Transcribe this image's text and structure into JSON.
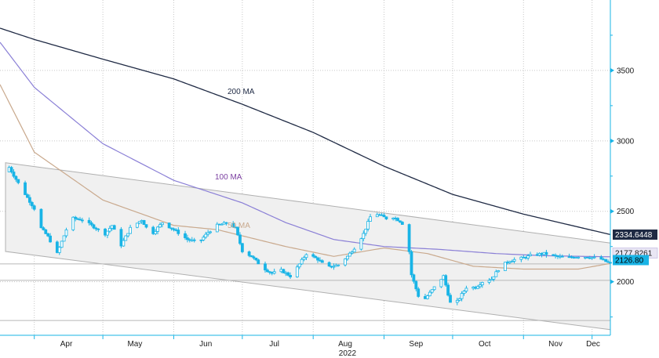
{
  "chart_data": {
    "type": "candlestick",
    "x_type": "date",
    "xlim": [
      "2022-03-17",
      "2022-12-09"
    ],
    "ylim": [
      1620,
      4000
    ],
    "year_label": "2022",
    "x_ticks": [
      {
        "date": "2022-04-01",
        "label": "Apr"
      },
      {
        "date": "2022-05-01",
        "label": "May"
      },
      {
        "date": "2022-06-01",
        "label": "Jun"
      },
      {
        "date": "2022-07-01",
        "label": "Jul"
      },
      {
        "date": "2022-08-01",
        "label": "Aug"
      },
      {
        "date": "2022-09-01",
        "label": "Sep"
      },
      {
        "date": "2022-10-01",
        "label": "Oct"
      },
      {
        "date": "2022-11-01",
        "label": "Nov"
      },
      {
        "date": "2022-12-01",
        "label": "Dec"
      }
    ],
    "y_ticks": [
      {
        "value": 2000,
        "label": "2000"
      },
      {
        "value": 2500,
        "label": "2500"
      },
      {
        "value": 3000,
        "label": "3000"
      },
      {
        "value": 3500,
        "label": "3500"
      }
    ],
    "horizontal_lines": [
      2126.8,
      2010,
      1725
    ],
    "channel": {
      "upper": [
        [
          "2022-03-17",
          2845
        ],
        [
          "2022-12-09",
          2275
        ]
      ],
      "lower": [
        [
          "2022-03-17",
          2215
        ],
        [
          "2022-12-09",
          1660
        ]
      ]
    },
    "price_anchors": [
      [
        "2022-03-17",
        2750
      ],
      [
        "2022-03-20",
        2840
      ],
      [
        "2022-03-25",
        2700
      ],
      [
        "2022-04-01",
        2520
      ],
      [
        "2022-04-04",
        2380
      ],
      [
        "2022-04-07",
        2320
      ],
      [
        "2022-04-11",
        2200
      ],
      [
        "2022-04-15",
        2370
      ],
      [
        "2022-04-18",
        2450
      ],
      [
        "2022-04-22",
        2440
      ],
      [
        "2022-04-28",
        2380
      ],
      [
        "2022-05-02",
        2340
      ],
      [
        "2022-05-05",
        2400
      ],
      [
        "2022-05-09",
        2260
      ],
      [
        "2022-05-13",
        2380
      ],
      [
        "2022-05-18",
        2440
      ],
      [
        "2022-05-22",
        2330
      ],
      [
        "2022-05-27",
        2420
      ],
      [
        "2022-06-02",
        2360
      ],
      [
        "2022-06-07",
        2300
      ],
      [
        "2022-06-12",
        2280
      ],
      [
        "2022-06-16",
        2350
      ],
      [
        "2022-06-20",
        2400
      ],
      [
        "2022-06-25",
        2420
      ],
      [
        "2022-06-28",
        2380
      ],
      [
        "2022-07-01",
        2220
      ],
      [
        "2022-07-05",
        2180
      ],
      [
        "2022-07-10",
        2100
      ],
      [
        "2022-07-14",
        2060
      ],
      [
        "2022-07-18",
        2080
      ],
      [
        "2022-07-22",
        2040
      ],
      [
        "2022-07-25",
        2100
      ],
      [
        "2022-07-29",
        2200
      ],
      [
        "2022-08-03",
        2160
      ],
      [
        "2022-08-07",
        2100
      ],
      [
        "2022-08-12",
        2120
      ],
      [
        "2022-08-16",
        2180
      ],
      [
        "2022-08-20",
        2260
      ],
      [
        "2022-08-23",
        2340
      ],
      [
        "2022-08-26",
        2460
      ],
      [
        "2022-08-29",
        2480
      ],
      [
        "2022-09-02",
        2450
      ],
      [
        "2022-09-05",
        2460
      ],
      [
        "2022-09-08",
        2430
      ],
      [
        "2022-09-11",
        2380
      ],
      [
        "2022-09-13",
        2050
      ],
      [
        "2022-09-16",
        1900
      ],
      [
        "2022-09-19",
        1880
      ],
      [
        "2022-09-23",
        1960
      ],
      [
        "2022-09-27",
        2040
      ],
      [
        "2022-09-30",
        1850
      ],
      [
        "2022-10-03",
        1860
      ],
      [
        "2022-10-07",
        1960
      ],
      [
        "2022-10-11",
        1960
      ],
      [
        "2022-10-14",
        2000
      ],
      [
        "2022-10-18",
        2020
      ],
      [
        "2022-10-22",
        2110
      ],
      [
        "2022-10-26",
        2150
      ],
      [
        "2022-11-01",
        2170
      ],
      [
        "2022-11-05",
        2190
      ],
      [
        "2022-11-10",
        2200
      ],
      [
        "2022-11-15",
        2180
      ],
      [
        "2022-11-20",
        2170
      ],
      [
        "2022-11-25",
        2180
      ],
      [
        "2022-11-30",
        2175
      ],
      [
        "2022-12-05",
        2160
      ],
      [
        "2022-12-09",
        2126.8
      ]
    ],
    "ma200_anchors": [
      [
        "2022-03-17",
        3800
      ],
      [
        "2022-04-01",
        3720
      ],
      [
        "2022-05-01",
        3580
      ],
      [
        "2022-06-01",
        3440
      ],
      [
        "2022-07-01",
        3260
      ],
      [
        "2022-08-01",
        3060
      ],
      [
        "2022-09-01",
        2820
      ],
      [
        "2022-10-01",
        2620
      ],
      [
        "2022-11-01",
        2480
      ],
      [
        "2022-12-09",
        2335
      ]
    ],
    "ma100_anchors": [
      [
        "2022-03-17",
        3700
      ],
      [
        "2022-04-01",
        3380
      ],
      [
        "2022-05-01",
        2980
      ],
      [
        "2022-06-01",
        2720
      ],
      [
        "2022-07-01",
        2560
      ],
      [
        "2022-07-20",
        2420
      ],
      [
        "2022-08-10",
        2300
      ],
      [
        "2022-09-01",
        2250
      ],
      [
        "2022-09-25",
        2230
      ],
      [
        "2022-10-20",
        2200
      ],
      [
        "2022-11-10",
        2185
      ],
      [
        "2022-12-09",
        2177
      ]
    ],
    "ma50_anchors": [
      [
        "2022-03-17",
        3400
      ],
      [
        "2022-04-01",
        2920
      ],
      [
        "2022-05-01",
        2580
      ],
      [
        "2022-06-01",
        2400
      ],
      [
        "2022-06-20",
        2370
      ],
      [
        "2022-07-20",
        2250
      ],
      [
        "2022-08-10",
        2180
      ],
      [
        "2022-09-01",
        2240
      ],
      [
        "2022-09-20",
        2200
      ],
      [
        "2022-10-10",
        2110
      ],
      [
        "2022-11-01",
        2090
      ],
      [
        "2022-11-25",
        2090
      ],
      [
        "2022-12-09",
        2130
      ]
    ],
    "ma_labels": [
      {
        "text": "200 MA",
        "color": "#1f2a44"
      },
      {
        "text": "100 MA",
        "color": "#7b3fa1"
      },
      {
        "text": "50 MA",
        "color": "#c9a98d"
      }
    ],
    "last_values": [
      {
        "value": 2334.6448,
        "label": "2334.6448",
        "bg": "#1f2a44",
        "color": "#ffffff"
      },
      {
        "value": 2177.8261,
        "label": "2177.8261",
        "bg": "#e9e6f4",
        "color": "#1a1a1a"
      },
      {
        "value": 2126.8,
        "label": "2126.80",
        "bg": "#19b4e6",
        "color": "#000000"
      }
    ],
    "colors": {
      "candle": "#19b4e6",
      "ma200": "#1f2a44",
      "ma100": "#8a7fd6",
      "ma50": "#c9a98d",
      "channel_fill": "#f0f0f0",
      "channel_edge": "#b0b0b0",
      "axis": "#19b4e6"
    }
  }
}
